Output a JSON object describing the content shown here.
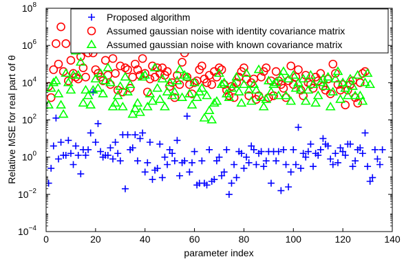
{
  "chart_data": {
    "type": "scatter",
    "title": "",
    "xlabel": "parameter index",
    "ylabel": "Relative MSE for real part of θ",
    "xlim": [
      0,
      140
    ],
    "ylim_exponent": [
      -4,
      8
    ],
    "y_scale": "log",
    "x_ticks": [
      "0",
      "20",
      "40",
      "60",
      "80",
      "100",
      "120",
      "140"
    ],
    "y_ticks": [
      {
        "base": "10",
        "exp": "−4"
      },
      {
        "base": "10",
        "exp": "−2"
      },
      {
        "base": "10",
        "exp": "0"
      },
      {
        "base": "10",
        "exp": "2"
      },
      {
        "base": "10",
        "exp": "4"
      },
      {
        "base": "10",
        "exp": "6"
      },
      {
        "base": "10",
        "exp": "8"
      }
    ],
    "grid": false,
    "legend_position": "top-right",
    "series": [
      {
        "name": "Proposed algorithm",
        "marker": "plus",
        "color": "#0000ff",
        "y_log10": [
          -1.4,
          -0.6,
          0.6,
          2.1,
          -0.1,
          0.8,
          0.1,
          0.1,
          0.9,
          0.2,
          -0.4,
          0.6,
          0.1,
          -0.9,
          0.4,
          0.1,
          0.4,
          1.3,
          3.5,
          0.8,
          1.8,
          0.3,
          0.0,
          0.1,
          0.1,
          0.5,
          -0.1,
          0.8,
          0.2,
          -0.2,
          1.2,
          -1.7,
          1.2,
          0.4,
          0.5,
          1.2,
          -0.2,
          1.0,
          1.3,
          -0.8,
          -0.3,
          0.8,
          -1.2,
          -0.7,
          -0.6,
          0.7,
          -1.1,
          0.0,
          -0.4,
          0.4,
          0.2,
          -0.2,
          0.9,
          -1.0,
          -0.3,
          -0.2,
          2.2,
          -0.8,
          -0.3,
          0.3,
          -1.5,
          -1.4,
          -0.2,
          -1.4,
          -1.5,
          0.4,
          -1.3,
          -1.2,
          -0.2,
          0.0,
          -1.0,
          -0.8,
          0.4,
          -2.0,
          -1.4,
          -0.4,
          -1.1,
          0.3,
          0.2,
          -0.6,
          0.0,
          -0.3,
          0.6,
          0.4,
          -0.4,
          0.2,
          0.3,
          -0.5,
          -0.2,
          0.3,
          -1.4,
          0.3,
          -0.2,
          0.3,
          -1.8,
          0.4,
          -0.4,
          -1.6,
          -0.8,
          0.4,
          -0.4,
          1.6,
          -0.6,
          0.2,
          0.0,
          0.3,
          0.7,
          -0.5,
          0.2,
          0.1,
          0.4,
          1.0,
          0.7,
          0.6,
          -0.1,
          -0.4,
          0.2,
          -0.3,
          0.5,
          0.3,
          0.1,
          0.7,
          0.7,
          -0.5,
          -0.2,
          0.4,
          0.5,
          0.2,
          1.3,
          -0.5,
          -1.3,
          -1.1,
          0.4,
          -0.1,
          -0.4,
          0.4
        ]
      },
      {
        "name": "Assumed gaussian noise with identity covariance matrix",
        "marker": "circle",
        "color": "#ff0000",
        "y_log10": [
          3.8,
          3.2,
          4.7,
          6.1,
          5.0,
          7.0,
          4.6,
          6.1,
          4.1,
          5.2,
          4.5,
          4.3,
          4.2,
          5.4,
          4.8,
          4.3,
          5.6,
          6.3,
          5.6,
          4.7,
          4.5,
          4.3,
          4.1,
          5.2,
          4.4,
          3.9,
          5.3,
          4.5,
          3.6,
          4.9,
          3.5,
          4.8,
          4.7,
          3.7,
          4.3,
          5.0,
          4.7,
          4.4,
          5.3,
          4.5,
          3.5,
          4.2,
          4.9,
          4.3,
          4.8,
          4.5,
          4.8,
          4.4,
          4.6,
          3.8,
          4.0,
          3.2,
          4.4,
          3.9,
          5.1,
          5.6,
          4.3,
          3.9,
          3.4,
          4.0,
          4.1,
          4.7,
          4.9,
          4.2,
          4.0,
          4.4,
          3.9,
          4.6,
          4.3,
          4.8,
          4.7,
          3.9,
          3.6,
          3.3,
          3.8,
          3.2,
          4.0,
          4.3,
          4.6,
          4.8,
          4.2,
          3.3,
          4.0,
          4.2,
          3.1,
          3.3,
          4.3,
          4.6,
          4.8,
          3.2,
          4.1,
          3.3,
          4.6,
          4.1,
          3.9,
          3.7,
          3.2,
          4.1,
          4.9,
          3.9,
          4.3,
          4.7,
          3.6,
          3.3,
          4.4,
          4.0,
          3.9,
          3.7,
          4.3,
          4.1,
          4.5,
          3.8,
          3.6,
          4.2,
          3.4,
          5.0,
          4.5,
          3.9,
          3.6,
          3.9,
          2.8,
          3.6,
          3.9,
          4.1,
          3.2,
          2.9,
          4.0,
          4.5,
          4.6
        ]
      },
      {
        "name": "Assumed gaussian noise with known covariance matrix",
        "marker": "triangle",
        "color": "#00ff00",
        "y_log10": [
          2.8,
          3.7,
          4.0,
          4.1,
          3.4,
          2.8,
          2.3,
          4.5,
          4.0,
          3.6,
          4.4,
          5.7,
          4.4,
          5.1,
          2.9,
          3.6,
          3.3,
          2.8,
          3.6,
          4.2,
          3.7,
          4.5,
          3.4,
          4.1,
          4.8,
          4.0,
          2.7,
          2.9,
          3.3,
          3.8,
          2.7,
          4.3,
          3.5,
          3.9,
          2.3,
          2.6,
          2.9,
          2.4,
          4.3,
          4.4,
          2.7,
          3.4,
          3.0,
          4.8,
          3.7,
          3.1,
          4.2,
          2.7,
          3.5,
          4.0,
          3.3,
          3.5,
          4.1,
          4.7,
          3.2,
          4.4,
          4.3,
          3.4,
          2.8,
          4.0,
          3.2,
          3.5,
          3.7,
          2.1,
          3.3,
          2.5,
          2.0,
          2.9,
          3.0,
          4.5,
          3.9,
          4.0,
          3.4,
          3.2,
          3.7,
          3.9,
          4.3,
          3.5,
          2.9,
          3.9,
          4.5,
          3.6,
          3.0,
          3.9,
          3.6,
          4.7,
          3.2,
          2.7,
          3.1,
          4.1,
          3.5,
          3.9,
          4.0,
          3.3,
          4.3,
          4.6,
          3.3,
          4.2,
          3.0,
          4.4,
          3.7,
          4.0,
          3.6,
          4.2,
          3.0,
          3.6,
          4.4,
          3.9,
          2.9,
          3.3,
          4.0,
          4.2,
          3.8,
          4.3,
          2.7,
          3.5,
          4.2,
          4.6,
          3.1,
          4.0,
          3.7,
          3.3,
          4.2,
          3.8,
          3.3,
          4.4,
          3.3,
          3.0,
          4.0,
          4.5,
          3.9
        ]
      }
    ]
  }
}
